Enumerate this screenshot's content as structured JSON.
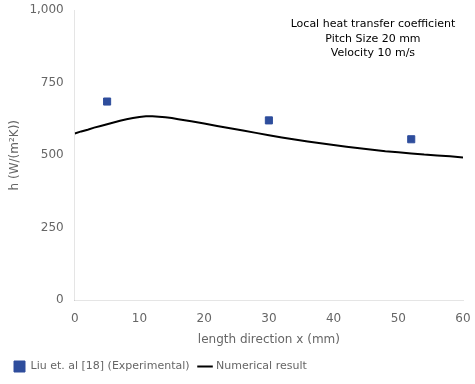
{
  "chart_data": {
    "type": "line",
    "annotation": "Local heat transfer coefficient\nPitch Size 20 mm\nVelocity 10 m/s",
    "xlabel": "length direction x (mm)",
    "ylabel": "h (W/(m²K))",
    "xlim": [
      0,
      60
    ],
    "ylim": [
      0,
      1000
    ],
    "xticks": [
      0,
      10,
      20,
      30,
      40,
      50,
      60
    ],
    "yticks": [
      0,
      250,
      500,
      750,
      1000
    ],
    "grid": false,
    "legend": "lower left",
    "series": [
      {
        "name": "Numerical result",
        "type": "line",
        "color": "#000000",
        "x": [
          0,
          1,
          2,
          3,
          4,
          5,
          6,
          7,
          8,
          9,
          10,
          11,
          12,
          13,
          14,
          15,
          16,
          18,
          20,
          22,
          24,
          26,
          28,
          30,
          32,
          34,
          36,
          38,
          40,
          42,
          44,
          46,
          48,
          50,
          52,
          54,
          56,
          58,
          60
        ],
        "values": [
          575,
          582,
          588,
          595,
          601,
          607,
          613,
          619,
          624,
          628,
          632,
          634,
          634,
          633,
          631,
          628,
          624,
          617,
          609,
          601,
          593,
          585,
          577,
          569,
          561,
          554,
          547,
          541,
          535,
          529,
          524,
          519,
          514,
          510,
          506,
          502,
          499,
          496,
          492
        ]
      },
      {
        "name": "Liu et. al [18] (Experimental)",
        "type": "scatter",
        "color": "#2e4d9c",
        "marker": "square",
        "x": [
          5,
          30,
          52
        ],
        "values": [
          685,
          620,
          555
        ]
      }
    ]
  }
}
